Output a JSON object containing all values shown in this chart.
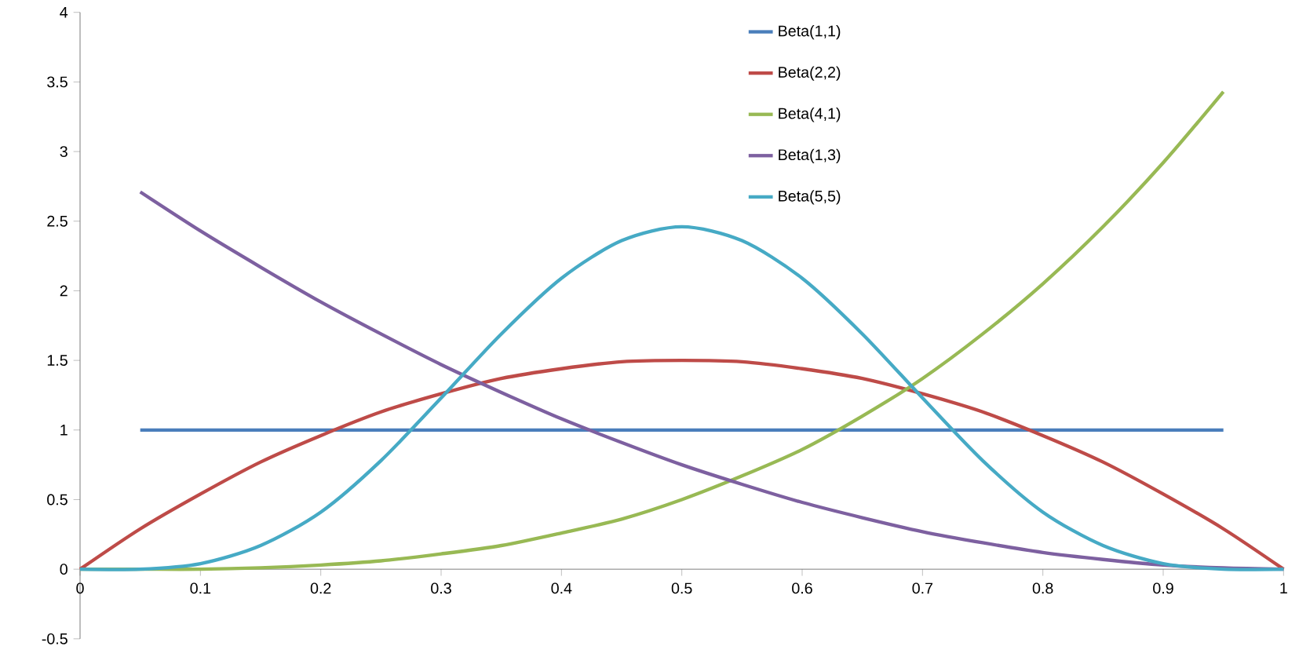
{
  "chart_data": {
    "type": "line",
    "xlim": [
      0,
      1
    ],
    "ylim": [
      -0.5,
      4
    ],
    "xticks": [
      0,
      0.1,
      0.2,
      0.3,
      0.4,
      0.5,
      0.6,
      0.7,
      0.8,
      0.9,
      1
    ],
    "yticks": [
      -0.5,
      0,
      0.5,
      1,
      1.5,
      2,
      2.5,
      3,
      3.5,
      4
    ],
    "grid": false,
    "legend": "top",
    "series": [
      {
        "name": "Beta(1,1)",
        "color": "#4a7ebb",
        "x": [
          0.05,
          0.1,
          0.15,
          0.2,
          0.25,
          0.3,
          0.35,
          0.4,
          0.45,
          0.5,
          0.55,
          0.6,
          0.65,
          0.7,
          0.75,
          0.8,
          0.85,
          0.9,
          0.95
        ],
        "values": [
          1,
          1,
          1,
          1,
          1,
          1,
          1,
          1,
          1,
          1,
          1,
          1,
          1,
          1,
          1,
          1,
          1,
          1,
          1
        ]
      },
      {
        "name": "Beta(2,2)",
        "color": "#be4b48",
        "x": [
          0,
          0.05,
          0.1,
          0.15,
          0.2,
          0.25,
          0.3,
          0.35,
          0.4,
          0.45,
          0.5,
          0.55,
          0.6,
          0.65,
          0.7,
          0.75,
          0.8,
          0.85,
          0.9,
          0.95,
          1
        ],
        "values": [
          0,
          0.29,
          0.54,
          0.77,
          0.96,
          1.13,
          1.26,
          1.37,
          1.44,
          1.49,
          1.5,
          1.49,
          1.44,
          1.37,
          1.26,
          1.13,
          0.96,
          0.77,
          0.54,
          0.29,
          0
        ]
      },
      {
        "name": "Beta(4,1)",
        "color": "#98b954",
        "x": [
          0,
          0.05,
          0.1,
          0.15,
          0.2,
          0.25,
          0.3,
          0.35,
          0.4,
          0.45,
          0.5,
          0.55,
          0.6,
          0.65,
          0.7,
          0.75,
          0.8,
          0.85,
          0.9,
          0.95
        ],
        "values": [
          0,
          0,
          0,
          0.01,
          0.03,
          0.06,
          0.11,
          0.17,
          0.26,
          0.36,
          0.5,
          0.67,
          0.86,
          1.1,
          1.37,
          1.69,
          2.05,
          2.46,
          2.92,
          3.43
        ]
      },
      {
        "name": "Beta(1,3)",
        "color": "#7d60a0",
        "x": [
          0.05,
          0.1,
          0.15,
          0.2,
          0.25,
          0.3,
          0.35,
          0.4,
          0.45,
          0.5,
          0.55,
          0.6,
          0.65,
          0.7,
          0.75,
          0.8,
          0.85,
          0.9,
          0.95,
          1
        ],
        "values": [
          2.71,
          2.43,
          2.17,
          1.92,
          1.69,
          1.47,
          1.27,
          1.08,
          0.91,
          0.75,
          0.61,
          0.48,
          0.37,
          0.27,
          0.19,
          0.12,
          0.07,
          0.03,
          0.01,
          0
        ]
      },
      {
        "name": "Beta(5,5)",
        "color": "#46aac5",
        "x": [
          0,
          0.05,
          0.1,
          0.15,
          0.2,
          0.25,
          0.3,
          0.35,
          0.4,
          0.45,
          0.5,
          0.55,
          0.6,
          0.65,
          0.7,
          0.75,
          0.8,
          0.85,
          0.9,
          0.95,
          1
        ],
        "values": [
          0,
          0,
          0.04,
          0.17,
          0.41,
          0.78,
          1.23,
          1.69,
          2.09,
          2.36,
          2.46,
          2.36,
          2.09,
          1.69,
          1.23,
          0.78,
          0.41,
          0.17,
          0.04,
          0,
          0
        ]
      }
    ]
  }
}
